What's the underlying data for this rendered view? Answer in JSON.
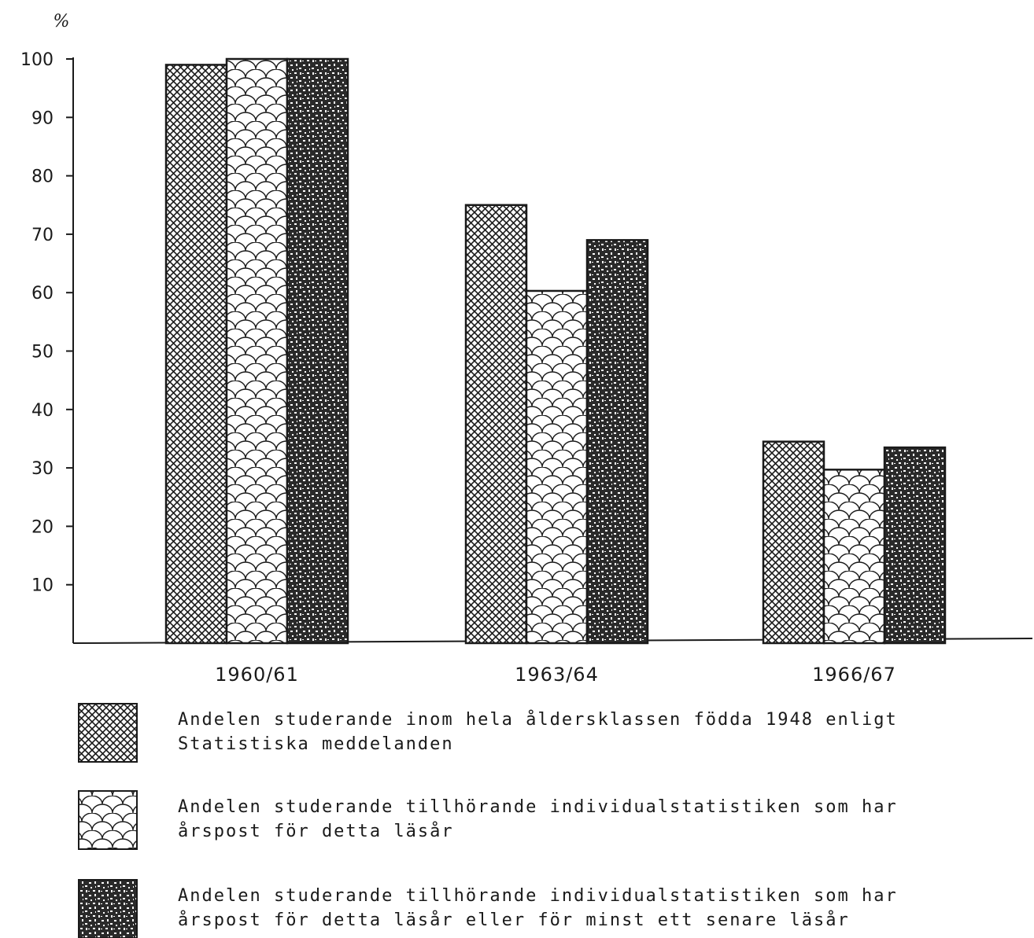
{
  "chart_data": {
    "type": "bar",
    "unit_label": "%",
    "categories": [
      "1960/61",
      "1963/64",
      "1966/67"
    ],
    "series": [
      {
        "name": "Andelen studerande inom hela åldersklassen födda 1948 enligt Statistiska meddelanden",
        "pattern": "crosshatch",
        "values": [
          99,
          75,
          34.5
        ]
      },
      {
        "name": "Andelen studerande tillhörande individualstatistiken som har årspost för detta läsår",
        "pattern": "scales",
        "values": [
          100,
          60.3,
          29.7
        ]
      },
      {
        "name": "Andelen studerande tillhörande individualstatistiken som har årspost för detta läsår eller för minst ett senare läsår",
        "pattern": "speckle",
        "values": [
          100,
          69,
          33.5
        ]
      }
    ],
    "y_ticks": [
      10,
      20,
      30,
      40,
      50,
      60,
      70,
      80,
      90,
      100
    ],
    "ylim": [
      0,
      100
    ],
    "grid": false,
    "legend_position": "bottom",
    "legend_lines": [
      [
        "Andelen studerande inom hela åldersklassen födda 1948 enligt",
        "Statistiska meddelanden"
      ],
      [
        "Andelen studerande tillhörande individualstatistiken som har",
        "årspost för detta läsår"
      ],
      [
        "Andelen studerande tillhörande individualstatistiken som har",
        "årspost för detta läsår eller för minst ett senare läsår"
      ]
    ],
    "colors": {
      "ink": "#1a1a1a",
      "paper": "#ffffff"
    }
  }
}
